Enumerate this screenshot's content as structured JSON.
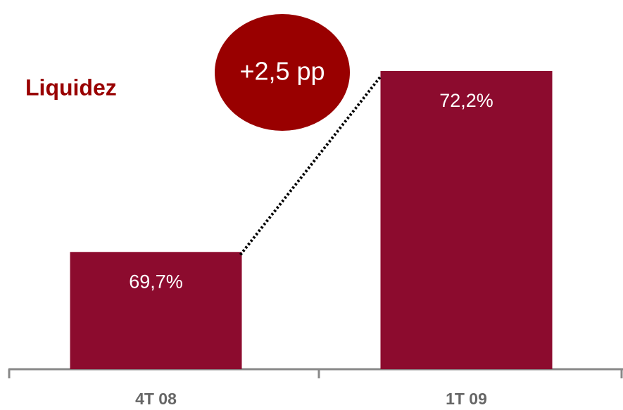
{
  "chart_data": {
    "type": "bar",
    "title": "Liquidez",
    "annotation": "+2,5 pp",
    "categories": [
      "4T 08",
      "1T 09"
    ],
    "values": [
      69.7,
      72.2
    ],
    "value_labels": [
      "69,7%",
      "72,2%"
    ],
    "color": "#8c0b2e",
    "ylim": [
      68.08,
      72.2
    ]
  }
}
